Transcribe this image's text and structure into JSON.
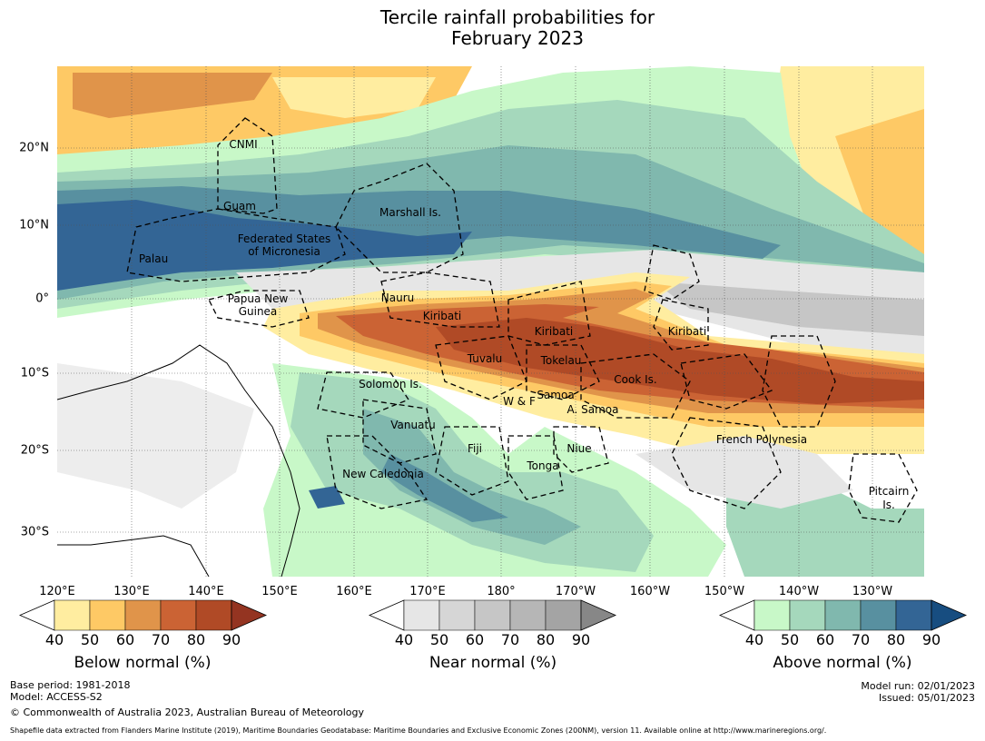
{
  "title": {
    "line1": "Tercile rainfall probabilities for",
    "line2": "February 2023"
  },
  "lon_ticks": [
    "120°E",
    "130°E",
    "140°E",
    "150°E",
    "160°E",
    "170°E",
    "180°",
    "170°W",
    "160°W",
    "150°W",
    "140°W",
    "130°W"
  ],
  "lat_ticks": [
    "20°N",
    "10°N",
    "0°",
    "10°S",
    "20°S",
    "30°S"
  ],
  "regions": [
    "CNMI",
    "Guam",
    "Marshall Is.",
    "Federated States",
    "of Micronesia",
    "Palau",
    "Papua New",
    "Guinea",
    "Nauru",
    "Kiribati",
    "Kiribati",
    "Kiribati",
    "Tuvalu",
    "Tokelau",
    "Cook Is.",
    "Solomon Is.",
    "W & F",
    "Samoa",
    "A. Samoa",
    "Vanuatu",
    "Fiji",
    "Niue",
    "Tonga",
    "New Caledonia",
    "French Polynesia",
    "Pitcairn",
    "Is."
  ],
  "colorbars": [
    {
      "title": "Below normal (%)",
      "ticks": [
        "40",
        "50",
        "60",
        "70",
        "80",
        "90"
      ],
      "colors": [
        "#ffffff",
        "#ffeda0",
        "#fec965",
        "#e0944a",
        "#cb6334",
        "#b04a26",
        "#943421"
      ]
    },
    {
      "title": "Near normal (%)",
      "ticks": [
        "40",
        "50",
        "60",
        "70",
        "80",
        "90"
      ],
      "colors": [
        "#ffffff",
        "#e6e6e6",
        "#d6d6d6",
        "#c6c6c6",
        "#b6b6b6",
        "#a4a4a4",
        "#878787"
      ]
    },
    {
      "title": "Above normal (%)",
      "ticks": [
        "40",
        "50",
        "60",
        "70",
        "80",
        "90"
      ],
      "colors": [
        "#ffffff",
        "#c8f8c8",
        "#a5d8bc",
        "#80b8ae",
        "#5890a0",
        "#336595",
        "#174d80"
      ]
    }
  ],
  "footer": {
    "base_period": "Base period: 1981-2018",
    "model": "Model: ACCESS-S2",
    "copyright": "© Commonwealth of Australia 2023, Australian Bureau of Meteorology",
    "model_run": "Model run: 02/01/2023",
    "issued": "Issued: 05/01/2023",
    "shapefile": "Shapefile data extracted from Flanders Marine Institute (2019), Maritime Boundaries Geodatabase: Maritime Boundaries and Exclusive Economic Zones (200NM), version 11. Available online at http://www.marineregions.org/."
  }
}
